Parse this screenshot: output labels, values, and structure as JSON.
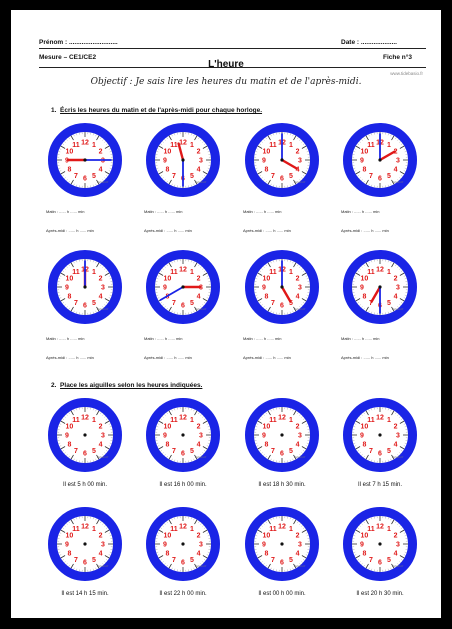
{
  "header": {
    "prenom_label": "Prénom : ...........................",
    "date_label": "Date : ....................",
    "mesure_label": "Mesure – CE1/CE2",
    "title": "L'heure",
    "fiche_label": "Fiche n°3",
    "site": "www.tidebasio.fr",
    "objective": "Objectif : Je sais lire les heures du matin et de l'après-midi."
  },
  "exercise1": {
    "number": "1.",
    "instruction": "Écris les heures du matin et de l'après-midi pour chaque horloge.",
    "matin_label": "Matin : ...... h ...... min",
    "aprem_label": "Après-midi : ...... h ...... min",
    "clocks": [
      {
        "hour": 9.0,
        "minute": 15
      },
      {
        "hour": 11.5,
        "minute": 30
      },
      {
        "hour": 4.0,
        "minute": 0
      },
      {
        "hour": 2.0,
        "minute": 0
      },
      {
        "hour": 0.0,
        "minute": 0
      },
      {
        "hour": 3.0,
        "minute": 40
      },
      {
        "hour": 5.0,
        "minute": 0
      },
      {
        "hour": 7.0,
        "minute": 30
      }
    ]
  },
  "exercise2": {
    "number": "2.",
    "instruction": "Place les aiguilles selon les heures indiquées.",
    "captions": [
      "Il est 5 h 00 min.",
      "Il est 16 h 00 min.",
      "Il est 18 h 30 min.",
      "Il est 7 h 15 min.",
      "Il est 14 h 15 min.",
      "Il est 22 h 00 min.",
      "Il est 00 h 00 min.",
      "Il est 20 h 30 min."
    ]
  },
  "clock_watermark": "dessin.fr",
  "colors": {
    "ring": "#1a24e6",
    "hour_hand": "#e01818",
    "minute_hand": "#1a24e6",
    "numbers": "#e01818"
  }
}
